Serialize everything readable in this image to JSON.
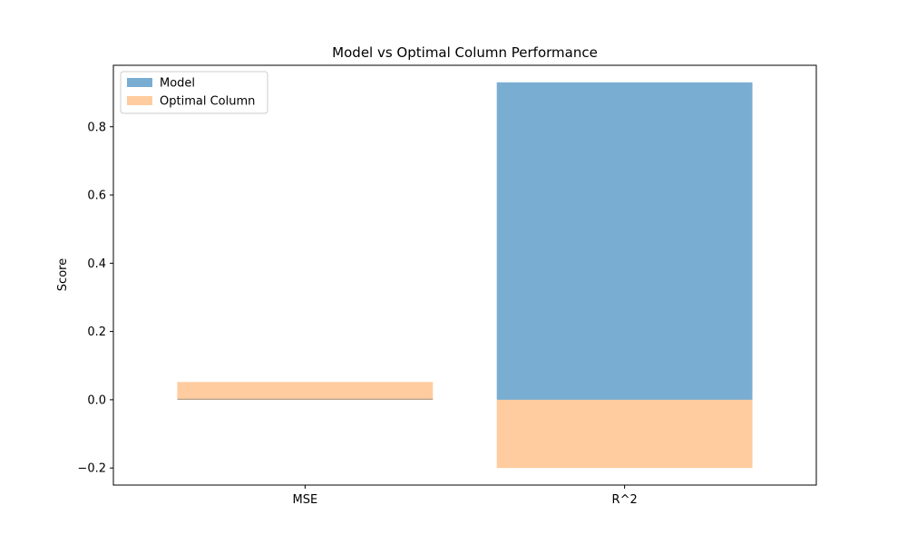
{
  "chart_data": {
    "type": "bar",
    "title": "Model vs Optimal Column Performance",
    "xlabel": "",
    "ylabel": "Score",
    "categories": [
      "MSE",
      "R^2"
    ],
    "series": [
      {
        "name": "Model",
        "values": [
          0.003,
          0.93
        ],
        "color": "#1f77b4",
        "opacity": 0.6
      },
      {
        "name": "Optimal Column",
        "values": [
          0.052,
          -0.2
        ],
        "color": "#ff7f0e",
        "opacity": 0.4
      }
    ],
    "ylim": [
      -0.25,
      0.98
    ],
    "yticks": [
      -0.2,
      0.0,
      0.2,
      0.4,
      0.6,
      0.8
    ],
    "ytick_labels": [
      "−0.2",
      "0.0",
      "0.2",
      "0.4",
      "0.6",
      "0.8"
    ],
    "grid": false,
    "legend": "top-left"
  }
}
